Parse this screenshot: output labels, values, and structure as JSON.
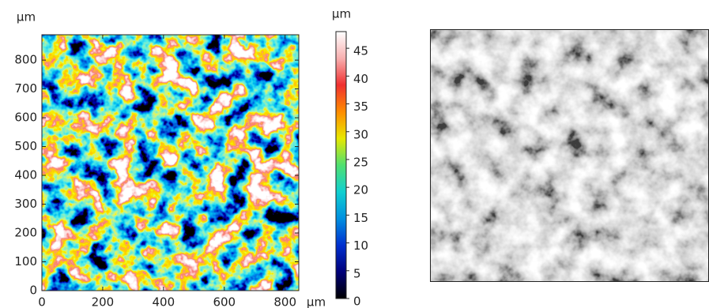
{
  "chart_data": {
    "type": "heatmap",
    "x_unit": "µm",
    "y_unit": "µm",
    "xlim": [
      0,
      845
    ],
    "xticks": [
      0,
      200,
      400,
      600,
      800
    ],
    "ylim": [
      0,
      888
    ],
    "yticks": [
      0,
      100,
      200,
      300,
      400,
      500,
      600,
      700,
      800
    ],
    "colorbar": {
      "label": "µm",
      "lim": [
        0,
        48
      ],
      "ticks": [
        0,
        5,
        10,
        15,
        20,
        25,
        30,
        35,
        40,
        45
      ],
      "colormap": [
        "#000000",
        "#00007a",
        "#0030d0",
        "#0090e0",
        "#10d0d0",
        "#50e070",
        "#e8e800",
        "#ff8c00",
        "#f03030",
        "#f8b0b0",
        "#ffffff"
      ]
    }
  }
}
